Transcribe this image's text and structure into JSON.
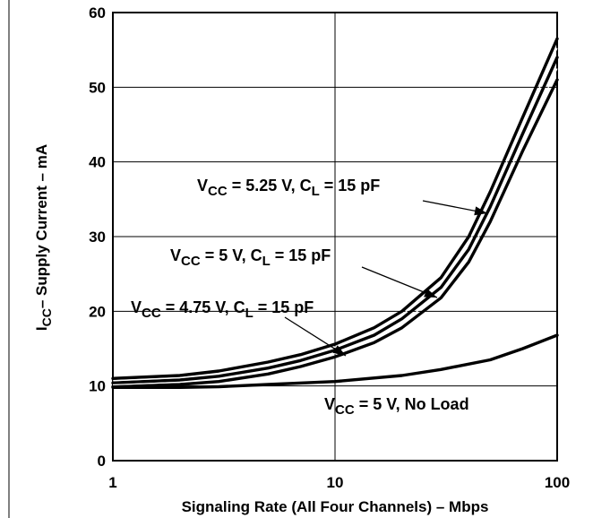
{
  "chart_data": {
    "type": "line",
    "xscale": "log",
    "xlim": [
      1,
      100
    ],
    "ylim": [
      0,
      60
    ],
    "xticks": [
      "1",
      "10",
      "100"
    ],
    "yticks": [
      "0",
      "10",
      "20",
      "30",
      "40",
      "50",
      "60"
    ],
    "xlabel": "Signaling Rate (All Four Channels) – Mbps",
    "ylabel": {
      "main": "I",
      "sub": "CC",
      "rest": "– Supply Current – mA"
    },
    "grid": true,
    "series": [
      {
        "name": "VCC = 5.25 V, CL = 15 pF",
        "x": [
          1,
          2,
          3,
          5,
          7,
          10,
          15,
          20,
          30,
          40,
          50,
          70,
          100
        ],
        "y": [
          11,
          11.4,
          12,
          13.2,
          14.2,
          15.6,
          17.8,
          20,
          24.5,
          30,
          36,
          46,
          56.5
        ]
      },
      {
        "name": "VCC = 5 V, CL = 15 pF",
        "x": [
          1,
          2,
          3,
          5,
          7,
          10,
          15,
          20,
          30,
          40,
          50,
          70,
          100
        ],
        "y": [
          10.4,
          10.8,
          11.3,
          12.4,
          13.4,
          14.8,
          16.8,
          19,
          23.2,
          28.3,
          34,
          43.8,
          54
        ]
      },
      {
        "name": "VCC = 4.75 V, CL = 15 pF",
        "x": [
          1,
          2,
          3,
          5,
          7,
          10,
          15,
          20,
          30,
          40,
          50,
          70,
          100
        ],
        "y": [
          9.9,
          10.2,
          10.6,
          11.6,
          12.6,
          13.9,
          15.8,
          17.8,
          21.8,
          26.6,
          32,
          41.5,
          51
        ]
      },
      {
        "name": "VCC = 5 V, No Load",
        "x": [
          1,
          2,
          3,
          5,
          10,
          20,
          30,
          50,
          70,
          100
        ],
        "y": [
          9.8,
          9.8,
          9.9,
          10.2,
          10.6,
          11.4,
          12.2,
          13.5,
          15,
          16.8
        ]
      }
    ],
    "annotations": [
      {
        "main": "V",
        "sub": "CC",
        "text": " = 5.25 V, C",
        "sub2": "L",
        "tail": " = 15 pF"
      },
      {
        "main": "V",
        "sub": "CC",
        "text": " = 5 V, C",
        "sub2": "L",
        "tail": " = 15 pF"
      },
      {
        "main": "V",
        "sub": "CC",
        "text": " = 4.75 V, C",
        "sub2": "L",
        "tail": " = 15 pF"
      },
      {
        "main": "V",
        "sub": "CC",
        "text": " = 5 V, No Load",
        "sub2": "",
        "tail": ""
      }
    ]
  }
}
